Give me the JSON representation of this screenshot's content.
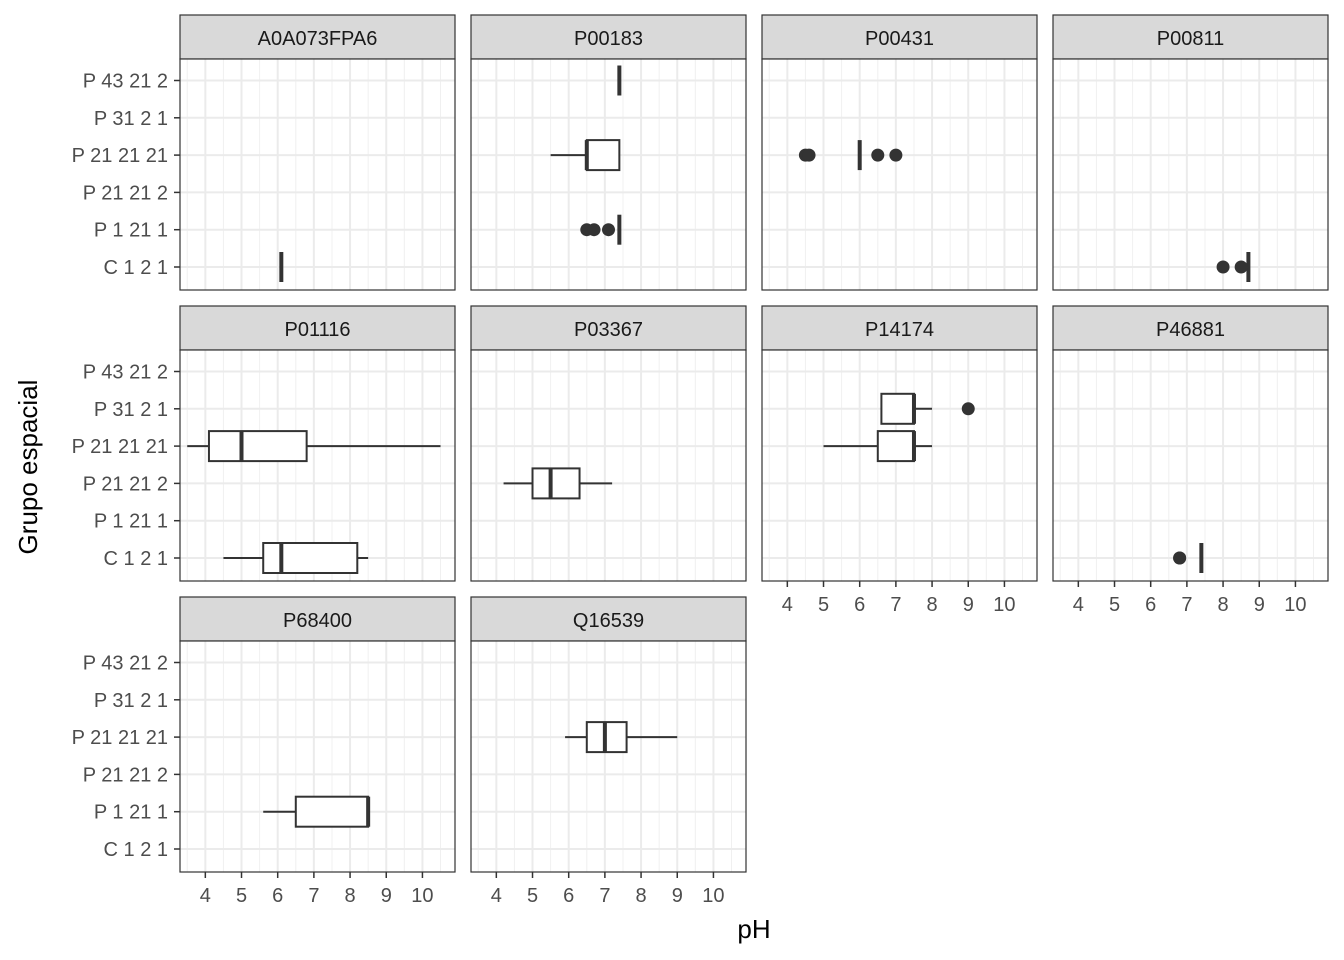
{
  "chart_data": {
    "type": "boxplot",
    "xlabel": "pH",
    "ylabel": "Grupo espacial",
    "xlim": [
      3.3,
      10.9
    ],
    "xticks": [
      4,
      5,
      6,
      7,
      8,
      9,
      10
    ],
    "y_categories": [
      "C 1 2 1",
      "P 1 21 1",
      "P 21 21 2",
      "P 21 21 21",
      "P 31 2 1",
      "P 43 21 2"
    ],
    "grid": true,
    "panels": [
      {
        "title": "A0A073FPA6",
        "boxes": [
          {
            "group": "C 1 2 1",
            "min": 6.1,
            "q1": 6.1,
            "median": 6.1,
            "q3": 6.1,
            "max": 6.1,
            "outliers": []
          }
        ]
      },
      {
        "title": "P00183",
        "boxes": [
          {
            "group": "P 43 21 2",
            "min": 7.4,
            "q1": 7.4,
            "median": 7.4,
            "q3": 7.4,
            "max": 7.4,
            "outliers": []
          },
          {
            "group": "P 21 21 21",
            "min": 5.5,
            "q1": 6.5,
            "median": 6.5,
            "q3": 7.4,
            "max": 7.4,
            "outliers": []
          },
          {
            "group": "P 1 21 1",
            "min": 7.4,
            "q1": 7.4,
            "median": 7.4,
            "q3": 7.4,
            "max": 7.4,
            "outliers": [
              6.5,
              6.7,
              7.1
            ]
          }
        ]
      },
      {
        "title": "P00431",
        "boxes": [
          {
            "group": "P 21 21 21",
            "min": 6.0,
            "q1": 6.0,
            "median": 6.0,
            "q3": 6.0,
            "max": 6.0,
            "outliers": [
              4.5,
              4.6,
              6.5,
              7.0
            ]
          }
        ]
      },
      {
        "title": "P00811",
        "boxes": [
          {
            "group": "C 1 2 1",
            "min": 8.7,
            "q1": 8.7,
            "median": 8.7,
            "q3": 8.7,
            "max": 8.7,
            "outliers": [
              8.0,
              8.5
            ]
          }
        ]
      },
      {
        "title": "P01116",
        "boxes": [
          {
            "group": "P 21 21 21",
            "min": 3.5,
            "q1": 4.1,
            "median": 5.0,
            "q3": 6.8,
            "max": 10.5,
            "outliers": []
          },
          {
            "group": "C 1 2 1",
            "min": 4.5,
            "q1": 5.6,
            "median": 6.1,
            "q3": 8.2,
            "max": 8.5,
            "outliers": []
          }
        ]
      },
      {
        "title": "P03367",
        "boxes": [
          {
            "group": "P 21 21 2",
            "min": 4.2,
            "q1": 5.0,
            "median": 5.5,
            "q3": 6.3,
            "max": 7.2,
            "outliers": []
          }
        ]
      },
      {
        "title": "P14174",
        "boxes": [
          {
            "group": "P 31 2 1",
            "min": 6.6,
            "q1": 6.6,
            "median": 7.5,
            "q3": 7.5,
            "max": 8.0,
            "outliers": [
              9.0
            ]
          },
          {
            "group": "P 21 21 21",
            "min": 5.0,
            "q1": 6.5,
            "median": 7.5,
            "q3": 7.5,
            "max": 8.0,
            "outliers": []
          }
        ]
      },
      {
        "title": "P46881",
        "boxes": [
          {
            "group": "C 1 2 1",
            "min": 7.4,
            "q1": 7.4,
            "median": 7.4,
            "q3": 7.4,
            "max": 7.4,
            "outliers": [
              6.8,
              6.8
            ]
          }
        ]
      },
      {
        "title": "P68400",
        "boxes": [
          {
            "group": "P 1 21 1",
            "min": 5.6,
            "q1": 6.5,
            "median": 8.5,
            "q3": 8.5,
            "max": 8.5,
            "outliers": []
          }
        ]
      },
      {
        "title": "Q16539",
        "boxes": [
          {
            "group": "P 21 21 21",
            "min": 5.9,
            "q1": 6.5,
            "median": 7.0,
            "q3": 7.6,
            "max": 9.0,
            "outliers": []
          }
        ]
      }
    ]
  }
}
